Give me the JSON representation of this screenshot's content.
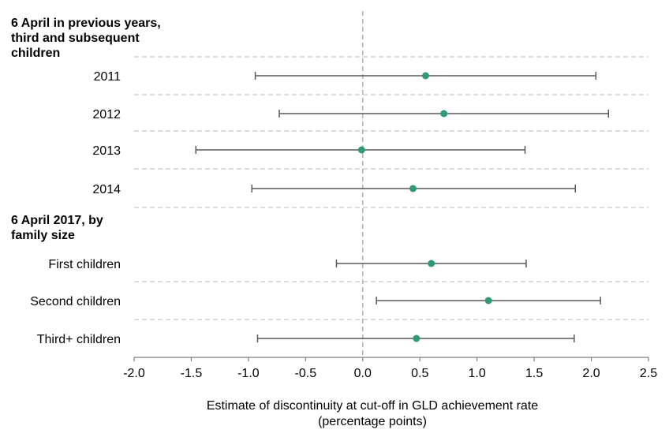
{
  "chart_data": {
    "type": "forest",
    "groups": [
      {
        "title": "6 April in previous years,\nthird and subsequent\nchildren",
        "rows": [
          {
            "label": "2011",
            "estimate": 0.55,
            "lower": -0.94,
            "upper": 2.04
          },
          {
            "label": "2012",
            "estimate": 0.71,
            "lower": -0.73,
            "upper": 2.15
          },
          {
            "label": "2013",
            "estimate": -0.01,
            "lower": -1.46,
            "upper": 1.42
          },
          {
            "label": "2014",
            "estimate": 0.44,
            "lower": -0.97,
            "upper": 1.86
          }
        ]
      },
      {
        "title": "6 April 2017, by\nfamily size",
        "rows": [
          {
            "label": "First children",
            "estimate": 0.6,
            "lower": -0.23,
            "upper": 1.43
          },
          {
            "label": "Second children",
            "estimate": 1.1,
            "lower": 0.12,
            "upper": 2.08
          },
          {
            "label": "Third+ children",
            "estimate": 0.47,
            "lower": -0.92,
            "upper": 1.85
          }
        ]
      }
    ],
    "xlim": [
      -2.0,
      2.5
    ],
    "xticks": [
      "-2.0",
      "-1.5",
      "-1.0",
      "-0.5",
      "0.0",
      "0.5",
      "1.0",
      "1.5",
      "2.0",
      "2.5"
    ],
    "xlabel_line1": "Estimate of discontinuity at cut-off in GLD achievement rate",
    "xlabel_line2": "(percentage points)",
    "point_color": "#2e9a78",
    "whisker_color": "#595959",
    "grid": "horizontal dashed",
    "zero_reference_line": true
  }
}
